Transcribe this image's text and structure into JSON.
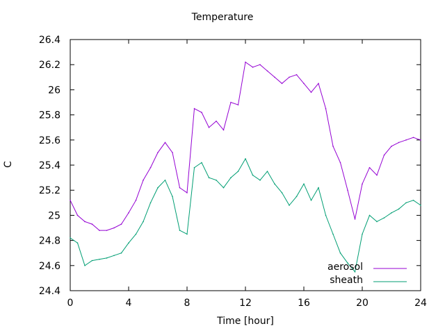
{
  "chart_data": {
    "type": "line",
    "title": "Temperature",
    "xlabel": "Time [hour]",
    "ylabel": "C",
    "xlim": [
      0,
      24
    ],
    "ylim": [
      24.4,
      26.4
    ],
    "xticks": [
      0,
      4,
      8,
      12,
      16,
      20,
      24
    ],
    "yticks": [
      24.4,
      24.6,
      24.8,
      25.0,
      25.2,
      25.4,
      25.6,
      25.8,
      26.0,
      26.2,
      26.4
    ],
    "ytick_labels": [
      "24.4",
      "24.6",
      "24.8",
      "25",
      "25.2",
      "25.4",
      "25.6",
      "25.8",
      "26",
      "26.2",
      "26.4"
    ],
    "grid": false,
    "legend_position": "bottom-right",
    "series": [
      {
        "name": "aerosol",
        "color": "#9400d3",
        "x": [
          0,
          0.5,
          1,
          1.5,
          2,
          2.5,
          3,
          3.5,
          4,
          4.5,
          5,
          5.5,
          6,
          6.5,
          7,
          7.5,
          8,
          8.5,
          9,
          9.5,
          10,
          10.5,
          11,
          11.5,
          12,
          12.5,
          13,
          13.5,
          14,
          14.5,
          15,
          15.5,
          16,
          16.5,
          17,
          17.5,
          18,
          18.5,
          19,
          19.5,
          20,
          20.5,
          21,
          21.5,
          22,
          22.5,
          23,
          23.5,
          24
        ],
        "y": [
          25.12,
          25.0,
          24.95,
          24.93,
          24.88,
          24.88,
          24.9,
          24.93,
          25.02,
          25.12,
          25.28,
          25.38,
          25.5,
          25.58,
          25.5,
          25.22,
          25.18,
          25.85,
          25.82,
          25.7,
          25.75,
          25.68,
          25.9,
          25.88,
          26.22,
          26.18,
          26.2,
          26.15,
          26.1,
          26.05,
          26.1,
          26.12,
          26.05,
          25.98,
          26.05,
          25.85,
          25.55,
          25.42,
          25.2,
          24.97,
          25.25,
          25.38,
          25.32,
          25.48,
          25.55,
          25.58,
          25.6,
          25.62,
          25.6
        ]
      },
      {
        "name": "sheath",
        "color": "#009e73",
        "x": [
          0,
          0.5,
          1,
          1.5,
          2,
          2.5,
          3,
          3.5,
          4,
          4.5,
          5,
          5.5,
          6,
          6.5,
          7,
          7.5,
          8,
          8.5,
          9,
          9.5,
          10,
          10.5,
          11,
          11.5,
          12,
          12.5,
          13,
          13.5,
          14,
          14.5,
          15,
          15.5,
          16,
          16.5,
          17,
          17.5,
          18,
          18.5,
          19,
          19.5,
          20,
          20.5,
          21,
          21.5,
          22,
          22.5,
          23,
          23.5,
          24
        ],
        "y": [
          24.82,
          24.78,
          24.6,
          24.64,
          24.65,
          24.66,
          24.68,
          24.7,
          24.78,
          24.85,
          24.95,
          25.1,
          25.22,
          25.28,
          25.15,
          24.88,
          24.85,
          25.38,
          25.42,
          25.3,
          25.28,
          25.22,
          25.3,
          25.35,
          25.45,
          25.32,
          25.28,
          25.35,
          25.25,
          25.18,
          25.08,
          25.15,
          25.25,
          25.12,
          25.22,
          25.0,
          24.85,
          24.7,
          24.62,
          24.55,
          24.85,
          25.0,
          24.95,
          24.98,
          25.02,
          25.05,
          25.1,
          25.12,
          25.08
        ]
      }
    ]
  }
}
